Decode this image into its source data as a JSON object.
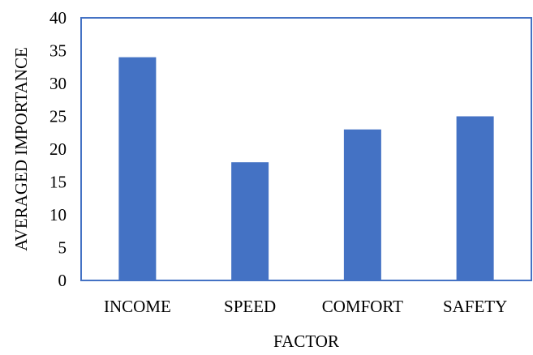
{
  "chart_data": {
    "type": "bar",
    "categories": [
      "INCOME",
      "SPEED",
      "COMFORT",
      "SAFETY"
    ],
    "values": [
      34,
      18,
      23,
      25
    ],
    "title": "",
    "xlabel": "FACTOR",
    "ylabel": "AVERAGED IMPORTANCE",
    "ylim": [
      0,
      40
    ],
    "yticks": [
      0,
      5,
      10,
      15,
      20,
      25,
      30,
      35,
      40
    ],
    "grid": false,
    "bar_color": "#4472C4",
    "frame_color": "#4472C4"
  }
}
